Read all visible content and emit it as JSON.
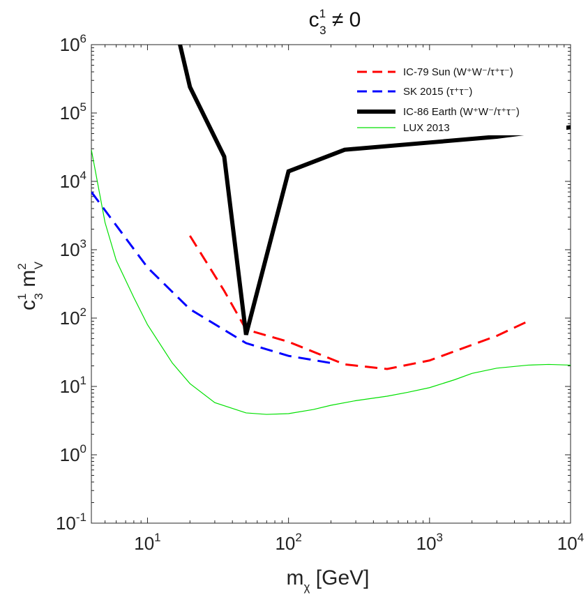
{
  "chart_data": {
    "type": "line",
    "title": {
      "base": "c",
      "sup": "1",
      "sub": "3",
      "rest": " ≠ 0"
    },
    "xlabel": {
      "base": "m",
      "sub": "χ",
      "rest": " [GeV]"
    },
    "ylabel": {
      "c": "c",
      "c_sup": "1",
      "c_sub": "3",
      "m": " m",
      "m_sup": "2",
      "m_sub": "V"
    },
    "xscale": "log",
    "yscale": "log",
    "xlim": [
      4,
      10000
    ],
    "ylim": [
      0.1,
      1000000
    ],
    "xticks": [
      {
        "value": 10,
        "base": "10",
        "exp": "1"
      },
      {
        "value": 100,
        "base": "10",
        "exp": "2"
      },
      {
        "value": 1000,
        "base": "10",
        "exp": "3"
      },
      {
        "value": 10000,
        "base": "10",
        "exp": "4"
      }
    ],
    "yticks": [
      {
        "value": 0.1,
        "base": "10",
        "exp": "-1"
      },
      {
        "value": 1,
        "base": "10",
        "exp": "0"
      },
      {
        "value": 10,
        "base": "10",
        "exp": "1"
      },
      {
        "value": 100,
        "base": "10",
        "exp": "2"
      },
      {
        "value": 1000,
        "base": "10",
        "exp": "3"
      },
      {
        "value": 10000,
        "base": "10",
        "exp": "4"
      },
      {
        "value": 100000,
        "base": "10",
        "exp": "5"
      },
      {
        "value": 1000000,
        "base": "10",
        "exp": "6"
      }
    ],
    "legend_position": "top-right",
    "series": [
      {
        "name": "IC-79 Sun (W⁺W⁻/τ⁺τ⁻)",
        "color": "#ff0000",
        "style": "dashed",
        "width": "medium",
        "x": [
          20,
          35,
          50,
          100,
          250,
          500,
          1000,
          3000,
          5000
        ],
        "y": [
          1600,
          250,
          68,
          45,
          21,
          18,
          24,
          55,
          90
        ]
      },
      {
        "name": "SK 2015 (τ⁺τ⁻)",
        "color": "#0000ff",
        "style": "dashed",
        "width": "medium",
        "x": [
          4,
          10,
          20,
          50,
          100,
          200
        ],
        "y": [
          7000,
          550,
          135,
          43,
          28,
          22
        ]
      },
      {
        "name": "IC-86 Earth (W⁺W⁻/τ⁺τ⁻)",
        "color": "#000000",
        "style": "solid",
        "width": "thick",
        "x": [
          17,
          20,
          35,
          50,
          100,
          250,
          1000,
          3000,
          10000
        ],
        "y": [
          1000000,
          240000,
          23000,
          57,
          14000,
          29000,
          37000,
          45000,
          62000
        ]
      },
      {
        "name": "LUX 2013",
        "color": "#00e000",
        "style": "solid",
        "width": "thin",
        "x": [
          4,
          5,
          6,
          8,
          10,
          15,
          20,
          30,
          50,
          70,
          100,
          150,
          200,
          300,
          500,
          700,
          1000,
          1500,
          2000,
          3000,
          5000,
          7000,
          10000
        ],
        "y": [
          29000,
          2500,
          700,
          200,
          80,
          22,
          11,
          5.8,
          4.1,
          3.9,
          4.0,
          4.6,
          5.3,
          6.2,
          7.2,
          8.2,
          9.6,
          12.5,
          15.5,
          18.5,
          20.5,
          21,
          20.5
        ]
      }
    ]
  }
}
